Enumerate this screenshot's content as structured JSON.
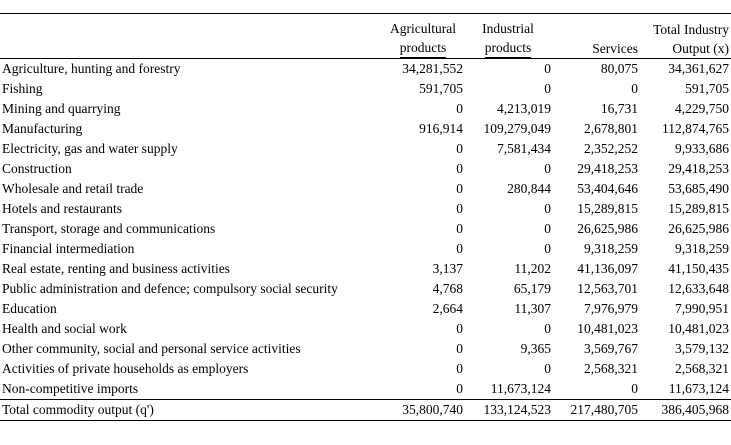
{
  "table": {
    "headers": [
      {
        "line1": "Agricultural",
        "line2": "products"
      },
      {
        "line1": "Industrial",
        "line2": "products"
      },
      {
        "line1": "",
        "line2": "Services"
      },
      {
        "line1": "Total Industry",
        "line2": "Output (x)"
      }
    ],
    "rows": [
      {
        "label": "Agriculture, hunting and forestry",
        "values": [
          "34,281,552",
          "0",
          "80,075",
          "34,361,627"
        ]
      },
      {
        "label": "Fishing",
        "values": [
          "591,705",
          "0",
          "0",
          "591,705"
        ]
      },
      {
        "label": "Mining and quarrying",
        "values": [
          "0",
          "4,213,019",
          "16,731",
          "4,229,750"
        ]
      },
      {
        "label": "Manufacturing",
        "values": [
          "916,914",
          "109,279,049",
          "2,678,801",
          "112,874,765"
        ]
      },
      {
        "label": "Electricity, gas and water supply",
        "values": [
          "0",
          "7,581,434",
          "2,352,252",
          "9,933,686"
        ]
      },
      {
        "label": "Construction",
        "values": [
          "0",
          "0",
          "29,418,253",
          "29,418,253"
        ]
      },
      {
        "label": "Wholesale and retail trade",
        "values": [
          "0",
          "280,844",
          "53,404,646",
          "53,685,490"
        ]
      },
      {
        "label": "Hotels and restaurants",
        "values": [
          "0",
          "0",
          "15,289,815",
          "15,289,815"
        ]
      },
      {
        "label": "Transport, storage and communications",
        "values": [
          "0",
          "0",
          "26,625,986",
          "26,625,986"
        ]
      },
      {
        "label": "Financial intermediation",
        "values": [
          "0",
          "0",
          "9,318,259",
          "9,318,259"
        ]
      },
      {
        "label": "Real estate, renting and business activities",
        "values": [
          "3,137",
          "11,202",
          "41,136,097",
          "41,150,435"
        ]
      },
      {
        "label": "Public administration and defence; compulsory social security",
        "values": [
          "4,768",
          "65,179",
          "12,563,701",
          "12,633,648"
        ]
      },
      {
        "label": "Education",
        "values": [
          "2,664",
          "11,307",
          "7,976,979",
          "7,990,951"
        ]
      },
      {
        "label": "Health and social work",
        "values": [
          "0",
          "0",
          "10,481,023",
          "10,481,023"
        ]
      },
      {
        "label": "Other community, social and personal service activities",
        "values": [
          "0",
          "9,365",
          "3,569,767",
          "3,579,132"
        ]
      },
      {
        "label": "Activities of private households as employers",
        "values": [
          "0",
          "0",
          "2,568,321",
          "2,568,321"
        ]
      },
      {
        "label": "Non-competitive imports",
        "values": [
          "0",
          "11,673,124",
          "0",
          "11,673,124"
        ]
      }
    ],
    "total": {
      "label": "Total commodity output (q')",
      "values": [
        "35,800,740",
        "133,124,523",
        "217,480,705",
        "386,405,968"
      ]
    }
  }
}
